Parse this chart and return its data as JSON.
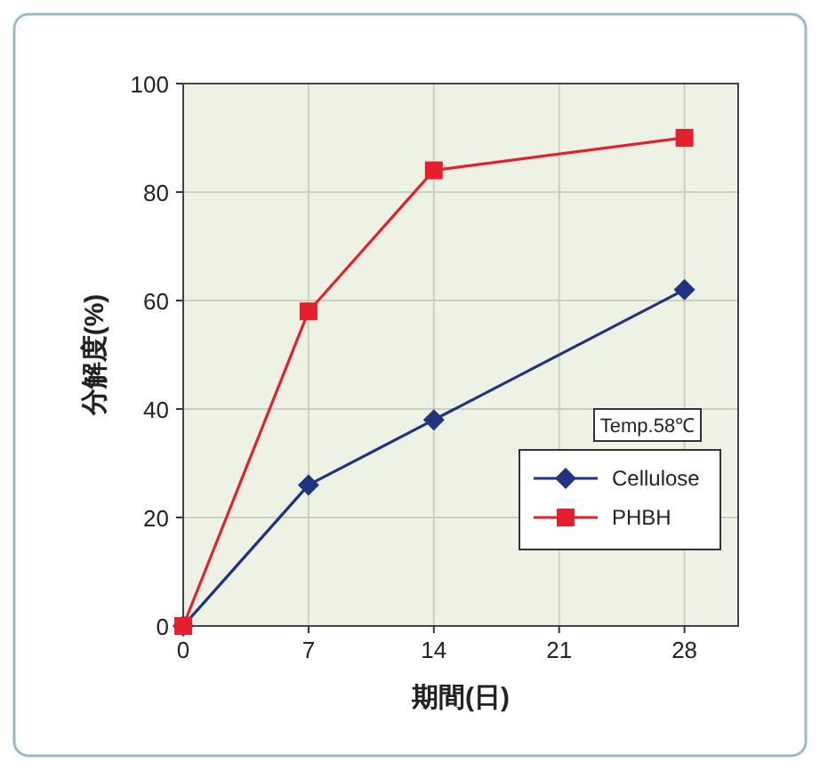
{
  "chart_data": {
    "type": "line",
    "xlabel": "期間(日)",
    "ylabel": "分解度(%)",
    "x": [
      0,
      7,
      14,
      28
    ],
    "series": [
      {
        "name": "Cellulose",
        "color": "#1f3380",
        "marker": "diamond",
        "values": [
          0,
          26,
          38,
          62
        ]
      },
      {
        "name": "PHBH",
        "color": "#e3202b",
        "marker": "square",
        "values": [
          0,
          58,
          84,
          90
        ]
      }
    ],
    "xlim": [
      0,
      31
    ],
    "xticks": [
      0,
      7,
      14,
      21,
      28
    ],
    "ylim": [
      0,
      100
    ],
    "yticks": [
      0,
      20,
      40,
      60,
      80,
      100
    ],
    "grid": true,
    "legend": "bottom right",
    "line_style": "solid",
    "annotations": [
      "Temp.58℃"
    ]
  }
}
